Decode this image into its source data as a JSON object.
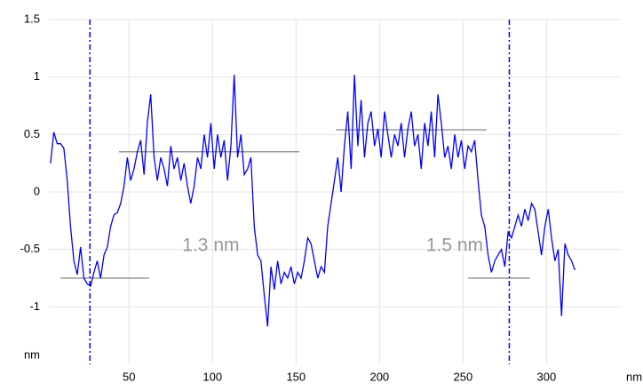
{
  "chart_data": {
    "type": "line",
    "x_label": "nm",
    "y_label": "nm",
    "x": [
      3,
      5,
      7,
      9,
      11,
      13,
      15,
      17,
      19,
      21,
      23,
      25,
      27,
      29,
      31,
      33,
      35,
      37,
      39,
      41,
      43,
      45,
      47,
      49,
      51,
      53,
      55,
      57,
      59,
      61,
      63,
      65,
      67,
      69,
      71,
      73,
      75,
      77,
      79,
      81,
      83,
      85,
      87,
      89,
      91,
      93,
      95,
      97,
      99,
      101,
      103,
      105,
      107,
      109,
      111,
      113,
      115,
      117,
      119,
      121,
      123,
      125,
      127,
      129,
      131,
      133,
      135,
      137,
      139,
      141,
      143,
      145,
      147,
      149,
      151,
      153,
      155,
      157,
      159,
      161,
      163,
      165,
      167,
      169,
      171,
      173,
      175,
      177,
      179,
      181,
      183,
      185,
      187,
      189,
      191,
      193,
      195,
      197,
      199,
      201,
      203,
      205,
      207,
      209,
      211,
      213,
      215,
      217,
      219,
      221,
      223,
      225,
      227,
      229,
      231,
      233,
      235,
      237,
      239,
      241,
      243,
      245,
      247,
      249,
      251,
      253,
      255,
      257,
      259,
      261,
      263,
      265,
      267,
      269,
      271,
      273,
      275,
      277,
      279,
      281,
      283,
      285,
      287,
      289,
      291,
      293,
      295,
      297,
      299,
      301,
      303,
      305,
      307,
      309,
      311,
      313,
      315,
      317
    ],
    "series": [
      {
        "color": "#0000ff",
        "values": [
          0.25,
          0.52,
          0.42,
          0.42,
          0.38,
          0.1,
          -0.3,
          -0.6,
          -0.72,
          -0.48,
          -0.75,
          -0.8,
          -0.82,
          -0.7,
          -0.6,
          -0.75,
          -0.55,
          -0.48,
          -0.3,
          -0.2,
          -0.18,
          -0.1,
          0.05,
          0.3,
          0.1,
          0.2,
          0.35,
          0.45,
          0.15,
          0.6,
          0.85,
          0.3,
          0.1,
          0.3,
          0.2,
          0.05,
          0.4,
          0.2,
          0.3,
          0.1,
          0.25,
          0.05,
          -0.1,
          0.05,
          0.3,
          0.2,
          0.5,
          0.3,
          0.6,
          0.2,
          0.5,
          0.3,
          0.45,
          0.1,
          0.4,
          1.02,
          0.3,
          0.5,
          0.15,
          0.2,
          0.3,
          -0.3,
          -0.55,
          -0.6,
          -0.9,
          -1.17,
          -0.65,
          -0.85,
          -0.6,
          -0.8,
          -0.7,
          -0.75,
          -0.65,
          -0.8,
          -0.7,
          -0.75,
          -0.6,
          -0.4,
          -0.45,
          -0.6,
          -0.75,
          -0.65,
          -0.7,
          -0.3,
          -0.1,
          0.1,
          0.3,
          0.0,
          0.4,
          0.7,
          0.2,
          1.02,
          0.4,
          0.8,
          0.3,
          0.6,
          0.7,
          0.4,
          0.55,
          0.3,
          0.7,
          0.5,
          0.3,
          0.5,
          0.4,
          0.6,
          0.3,
          0.55,
          0.7,
          0.4,
          0.5,
          0.2,
          0.6,
          0.4,
          0.7,
          0.3,
          0.85,
          0.6,
          0.3,
          0.4,
          0.2,
          0.5,
          0.3,
          0.45,
          0.2,
          0.4,
          0.35,
          0.45,
          0.1,
          -0.2,
          -0.3,
          -0.55,
          -0.7,
          -0.6,
          -0.55,
          -0.5,
          -0.65,
          -0.35,
          -0.4,
          -0.3,
          -0.2,
          -0.3,
          -0.15,
          -0.25,
          -0.1,
          -0.15,
          -0.35,
          -0.55,
          -0.3,
          -0.15,
          -0.4,
          -0.6,
          -0.5,
          -1.08,
          -0.45,
          -0.55,
          -0.6,
          -0.68
        ]
      }
    ],
    "xlim": [
      2,
      345
    ],
    "ylim": [
      -1.5,
      1.5
    ],
    "xticks": [
      50,
      100,
      150,
      200,
      250,
      300
    ],
    "yticks": [
      -1,
      -0.5,
      0,
      0.5,
      1,
      1.5
    ],
    "grid": true,
    "grid_color": "#e4e4e4",
    "cursors": {
      "color": "#0000ff",
      "x": [
        26.6,
        277.7
      ]
    },
    "reference_lines": {
      "color": "#999999",
      "lines": [
        {
          "x": [
            9,
            62
          ],
          "y": -0.75
        },
        {
          "x": [
            44,
            152
          ],
          "y": 0.35
        },
        {
          "x": [
            174,
            264
          ],
          "y": 0.54
        },
        {
          "x": [
            253,
            290
          ],
          "y": -0.75
        }
      ]
    },
    "annotations": [
      {
        "text": "1.3 nm",
        "x": 99,
        "y": -0.47
      },
      {
        "text": "1.5 nm",
        "x": 245,
        "y": -0.47
      }
    ]
  }
}
